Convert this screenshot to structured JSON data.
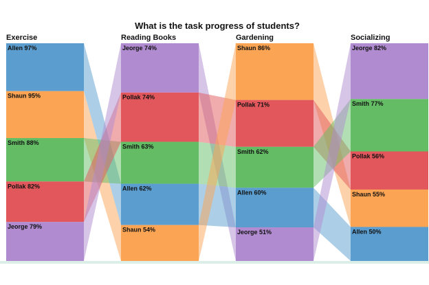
{
  "chart_data": {
    "type": "parallel-sets",
    "title": "What is the task progress of students?",
    "stages": [
      {
        "name": "Exercise",
        "items": [
          {
            "student": "Allen",
            "value": 97
          },
          {
            "student": "Shaun",
            "value": 95
          },
          {
            "student": "Smith",
            "value": 88
          },
          {
            "student": "Pollak",
            "value": 82
          },
          {
            "student": "Jeorge",
            "value": 79
          }
        ]
      },
      {
        "name": "Reading Books",
        "items": [
          {
            "student": "Jeorge",
            "value": 74
          },
          {
            "student": "Pollak",
            "value": 74
          },
          {
            "student": "Smith",
            "value": 63
          },
          {
            "student": "Allen",
            "value": 62
          },
          {
            "student": "Shaun",
            "value": 54
          }
        ]
      },
      {
        "name": "Gardening",
        "items": [
          {
            "student": "Shaun",
            "value": 86
          },
          {
            "student": "Pollak",
            "value": 71
          },
          {
            "student": "Smith",
            "value": 62
          },
          {
            "student": "Allen",
            "value": 60
          },
          {
            "student": "Jeorge",
            "value": 51
          }
        ]
      },
      {
        "name": "Socializing",
        "items": [
          {
            "student": "Jeorge",
            "value": 82
          },
          {
            "student": "Smith",
            "value": 77
          },
          {
            "student": "Pollak",
            "value": 56
          },
          {
            "student": "Shaun",
            "value": 55
          },
          {
            "student": "Allen",
            "value": 50
          }
        ]
      }
    ],
    "colors": {
      "Allen": "#5a9dce",
      "Shaun": "#fba453",
      "Smith": "#64bd65",
      "Pollak": "#e1575b",
      "Jeorge": "#b08bd0"
    },
    "value_suffix": "%"
  }
}
